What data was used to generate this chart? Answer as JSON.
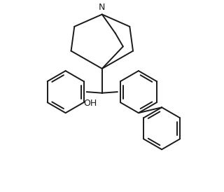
{
  "background_color": "#ffffff",
  "line_color": "#1a1a1a",
  "line_width": 1.4,
  "font_size": 9,
  "fig_width": 3.2,
  "fig_height": 2.74,
  "dpi": 100
}
